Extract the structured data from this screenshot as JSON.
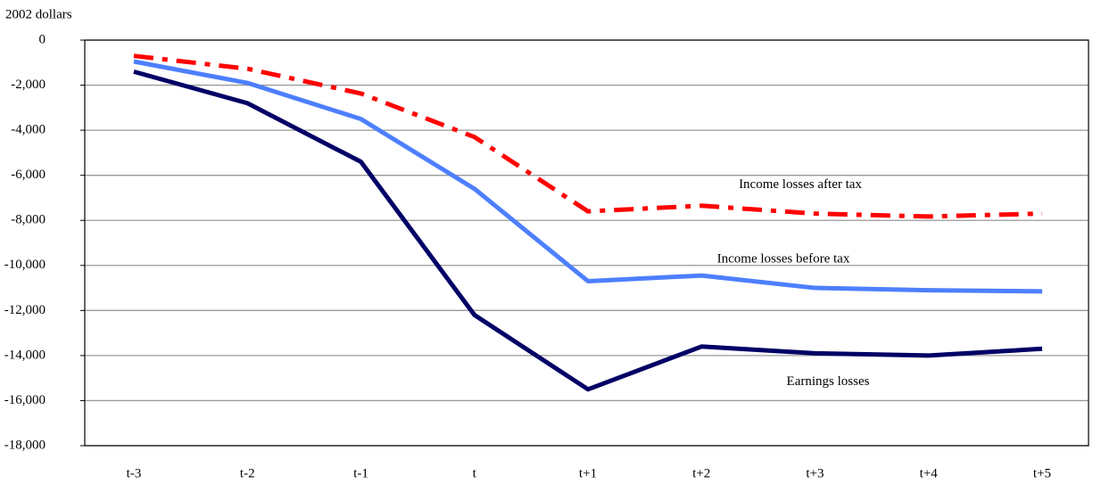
{
  "chart_data": {
    "type": "line",
    "y_axis_label": "2002 dollars",
    "categories": [
      "t-3",
      "t-2",
      "t-1",
      "t",
      "t+1",
      "t+2",
      "t+3",
      "t+4",
      "t+5"
    ],
    "series": [
      {
        "name": "Income losses after tax",
        "color": "#ff0000",
        "line_style": "dashed",
        "values": [
          -700,
          -1270,
          -2370,
          -4300,
          -7600,
          -7350,
          -7700,
          -7830,
          -7700
        ]
      },
      {
        "name": "Income losses before tax",
        "color": "#4d7fff",
        "line_style": "solid",
        "values": [
          -950,
          -1900,
          -3500,
          -6600,
          -10700,
          -10450,
          -11000,
          -11100,
          -11150
        ]
      },
      {
        "name": "Earnings losses",
        "color": "#000066",
        "line_style": "solid",
        "values": [
          -1400,
          -2800,
          -5400,
          -12200,
          -15500,
          -13600,
          -13900,
          -14000,
          -13700
        ]
      }
    ],
    "ylim": [
      -18000,
      0
    ],
    "yticks": [
      {
        "value": -18000,
        "label": "-18,000"
      },
      {
        "value": -16000,
        "label": "-16,000"
      },
      {
        "value": -14000,
        "label": "-14,000"
      },
      {
        "value": -12000,
        "label": "-12,000"
      },
      {
        "value": -10000,
        "label": "-10,000"
      },
      {
        "value": -8000,
        "label": "-8,000"
      },
      {
        "value": -6000,
        "label": "-6,000"
      },
      {
        "value": -4000,
        "label": "-4,000"
      },
      {
        "value": -2000,
        "label": "-2,000"
      },
      0
    ],
    "grid": true
  }
}
